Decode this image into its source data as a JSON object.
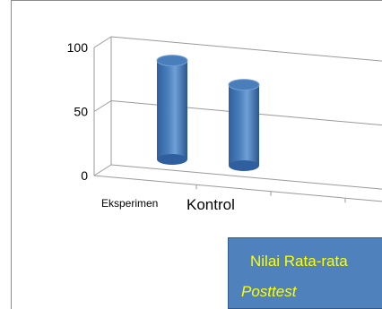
{
  "chart_data": {
    "type": "bar",
    "style": "3d-cylinder",
    "categories": [
      "Eksperimen",
      "Kontrol"
    ],
    "values": [
      80,
      66
    ],
    "ylim": [
      0,
      100
    ],
    "yticks": [
      "0",
      "50",
      "100"
    ],
    "grid": true,
    "bar_color": "#4a7ebb"
  },
  "legend_box": {
    "line1": "Nilai Rata-rata",
    "line2": "Posttest",
    "bg_color": "#4f81bd",
    "text_color": "#ffff00"
  }
}
